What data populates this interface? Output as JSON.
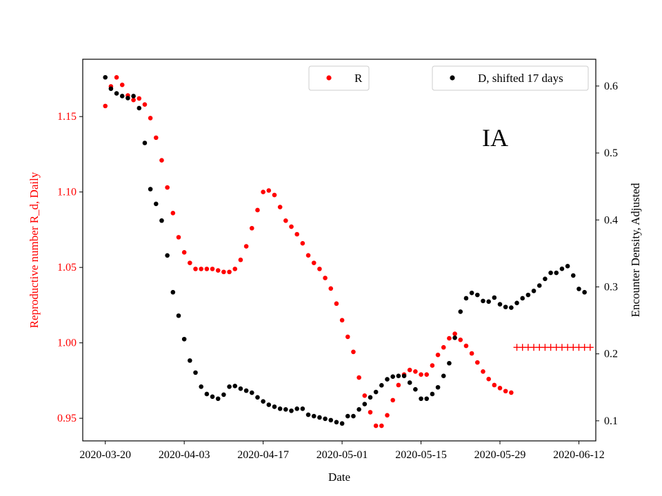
{
  "chart_data": {
    "type": "scatter",
    "xlabel": "Date",
    "ylabel_left": "Reproductive number R_d, Daily",
    "ylabel_right": "Encounter Density, Adjusted",
    "annotation": "IA",
    "x_ticks": [
      "2020-03-20",
      "2020-04-03",
      "2020-04-17",
      "2020-05-01",
      "2020-05-15",
      "2020-05-29",
      "2020-06-12"
    ],
    "x_start": "2020-03-20",
    "xlim": [
      "2020-03-16",
      "2020-06-15"
    ],
    "ylim_left": [
      0.935,
      1.188
    ],
    "ylim_right": [
      0.07,
      0.64
    ],
    "yticks_left": [
      "0.95",
      "1.00",
      "1.05",
      "1.10",
      "1.15"
    ],
    "yticks_right": [
      "0.1",
      "0.2",
      "0.3",
      "0.4",
      "0.5",
      "0.6"
    ],
    "legend": [
      {
        "label": "R",
        "color": "#ff0000",
        "position": "upper-center"
      },
      {
        "label": "D, shifted 17 days",
        "color": "#000000",
        "position": "upper-right"
      }
    ],
    "colors": {
      "R": "#ff0000",
      "D": "#000000",
      "R_projection": "#ff0000",
      "left_axis": "#ff0000",
      "right_axis": "#000000"
    },
    "series_R": [
      1.157,
      1.17,
      1.176,
      1.171,
      1.164,
      1.161,
      1.162,
      1.158,
      1.149,
      1.136,
      1.121,
      1.103,
      1.086,
      1.07,
      1.06,
      1.053,
      1.049,
      1.049,
      1.049,
      1.049,
      1.048,
      1.047,
      1.047,
      1.049,
      1.055,
      1.064,
      1.076,
      1.088,
      1.1,
      1.101,
      1.098,
      1.09,
      1.081,
      1.077,
      1.072,
      1.066,
      1.058,
      1.053,
      1.049,
      1.043,
      1.036,
      1.026,
      1.015,
      1.004,
      0.994,
      0.977,
      0.965,
      0.954,
      0.945,
      0.945,
      0.952,
      0.962,
      0.972,
      0.979,
      0.982,
      0.981,
      0.979,
      0.979,
      0.985,
      0.992,
      0.997,
      1.003,
      1.006,
      1.002,
      0.998,
      0.993,
      0.987,
      0.981,
      0.976,
      0.972,
      0.97,
      0.968,
      0.967
    ],
    "series_D": [
      0.613,
      0.596,
      0.589,
      0.585,
      0.582,
      0.585,
      0.567,
      0.515,
      0.446,
      0.424,
      0.399,
      0.347,
      0.292,
      0.257,
      0.222,
      0.19,
      0.172,
      0.151,
      0.14,
      0.136,
      0.133,
      0.139,
      0.151,
      0.152,
      0.148,
      0.145,
      0.142,
      0.135,
      0.129,
      0.124,
      0.121,
      0.118,
      0.117,
      0.115,
      0.118,
      0.118,
      0.109,
      0.107,
      0.105,
      0.103,
      0.101,
      0.098,
      0.096,
      0.107,
      0.107,
      0.117,
      0.125,
      0.135,
      0.143,
      0.153,
      0.162,
      0.166,
      0.167,
      0.167,
      0.157,
      0.147,
      0.133,
      0.133,
      0.14,
      0.15,
      0.167,
      0.186,
      0.224,
      0.263,
      0.283,
      0.291,
      0.288,
      0.279,
      0.278,
      0.284,
      0.274,
      0.27,
      0.269,
      0.276,
      0.283,
      0.288,
      0.294,
      0.302,
      0.312,
      0.321,
      0.321,
      0.327,
      0.331,
      0.317,
      0.297,
      0.292
    ],
    "series_R_projection": {
      "start_date": "2020-06-01",
      "end_date": "2020-06-14",
      "value": 0.997
    }
  }
}
